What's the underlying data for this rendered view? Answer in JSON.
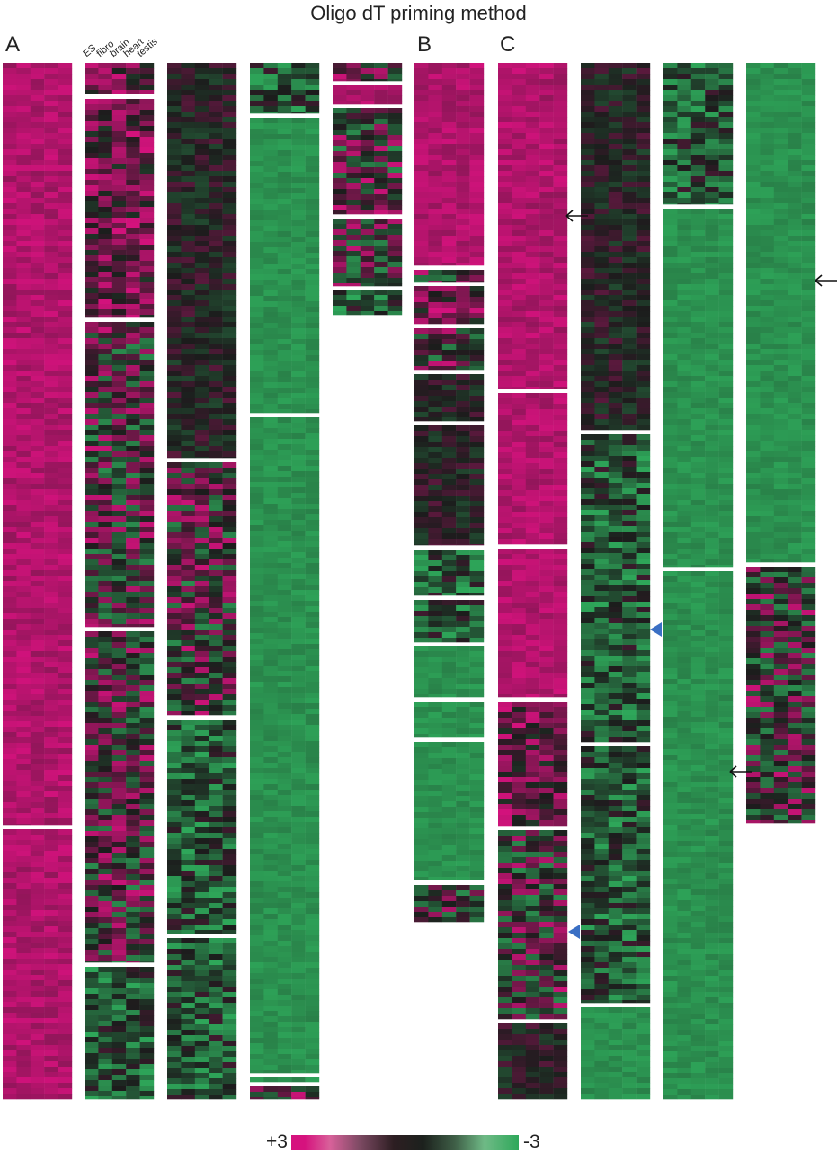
{
  "title": "Oligo dT priming method",
  "panels": [
    "A",
    "B",
    "C"
  ],
  "chart_data": {
    "type": "heatmap",
    "title": "Oligo dT priming method",
    "columns": [
      "ES",
      "fibro",
      "brain",
      "heart",
      "testis"
    ],
    "colorbar": {
      "max_label": "+3",
      "min_label": "-3",
      "range": [
        3,
        -3
      ],
      "colors": [
        "#d6127e",
        "#1c1c1c",
        "#2ea85a"
      ]
    },
    "panels": [
      {
        "label": "A",
        "dominant_levels": [
          "high",
          "high",
          "mixed-high",
          "mixed",
          "mixed",
          "mixed-low",
          "neutral",
          "mixed",
          "mixed-low",
          "mixed-low",
          "low",
          "low",
          "low",
          "mixed-low",
          "mixed"
        ]
      },
      {
        "label": "B",
        "dominant_levels": [
          "high",
          "mixed",
          "mixed-high",
          "mixed",
          "neutral",
          "neutral",
          "mixed-low",
          "mixed-low",
          "low",
          "low",
          "low",
          "mixed"
        ]
      },
      {
        "label": "C",
        "dominant_levels": [
          "high",
          "high",
          "high",
          "mixed-high",
          "mixed",
          "neutral",
          "neutral",
          "mixed-low",
          "mixed-low",
          "low",
          "low",
          "low",
          "low",
          "mixed"
        ]
      }
    ],
    "annotations": {
      "arrows": 3,
      "triangles": 2,
      "triangle_color": "#3a6fc4"
    }
  }
}
